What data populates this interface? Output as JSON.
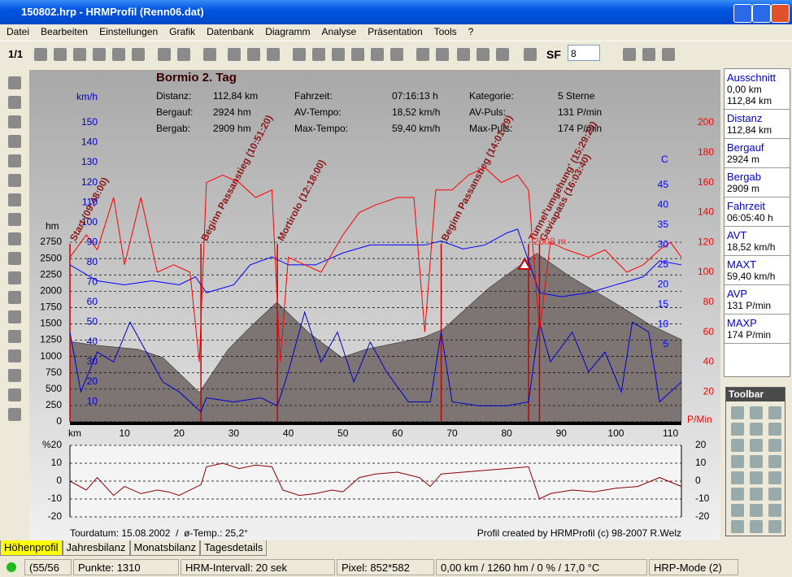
{
  "window": {
    "title": "150802.hrp - HRMProfil (Renn06.dat)"
  },
  "menu": [
    "Datei",
    "Bearbeiten",
    "Einstellungen",
    "Grafik",
    "Datenbank",
    "Diagramm",
    "Analyse",
    "Präsentation",
    "Tools",
    "?"
  ],
  "toolbar": {
    "page": "1/1",
    "sf_label": "SF",
    "sf_value": "8"
  },
  "chart": {
    "title": "Bormio 2. Tag",
    "stats": [
      [
        "Distanz:",
        "112,84 km",
        "Fahrzeit:",
        "07:16:13 h",
        "Kategorie:",
        "5 Sterne"
      ],
      [
        "Bergauf:",
        "2924 hm",
        "AV-Tempo:",
        "18,52 km/h",
        "AV-Puls:",
        "131 P/min"
      ],
      [
        "Bergab:",
        "2909 hm",
        "Max-Tempo:",
        "59,40 km/h",
        "Max-Puls:",
        "174 P/min"
      ]
    ],
    "x_unit": "km",
    "xlim": [
      0,
      112
    ],
    "xticks": [
      10,
      20,
      30,
      40,
      50,
      60,
      70,
      80,
      90,
      100,
      110
    ],
    "elevation": {
      "unit": "hm",
      "color": "#7d7474",
      "ylim": [
        0,
        4580
      ],
      "yticks": [
        0,
        250,
        500,
        750,
        1000,
        1250,
        1500,
        1750,
        2000,
        2250,
        2500,
        2750
      ],
      "x": [
        0,
        5,
        12.5,
        17,
        23.7,
        29,
        33.4,
        37.9,
        43.8,
        49.8,
        54.2,
        64.7,
        68.4,
        76.6,
        85.5,
        91.5,
        100.4,
        106.4,
        112
      ],
      "values": [
        1230,
        1170,
        1110,
        985,
        450,
        1110,
        1480,
        1830,
        1360,
        985,
        1110,
        1290,
        1420,
        2040,
        2580,
        2230,
        1790,
        1480,
        1260
      ]
    },
    "speed": {
      "unit": "km/h",
      "color": "#0000cc",
      "ylim": [
        0,
        150
      ],
      "yticks": [
        10,
        20,
        30,
        40,
        50,
        60,
        70,
        80,
        90,
        100,
        110,
        120,
        130,
        140,
        150
      ],
      "x": [
        0,
        2,
        5,
        8,
        11,
        13,
        15,
        17,
        20,
        24,
        25,
        30,
        35,
        38,
        40,
        43,
        46,
        49,
        52,
        55,
        58,
        62,
        66,
        68,
        70,
        75,
        80,
        84,
        86,
        88,
        92,
        95,
        98,
        101,
        103,
        106,
        108,
        112
      ],
      "values": [
        45,
        15,
        35,
        30,
        50,
        40,
        30,
        20,
        15,
        5,
        12,
        10,
        12,
        8,
        25,
        55,
        30,
        45,
        20,
        40,
        25,
        10,
        10,
        45,
        10,
        8,
        8,
        10,
        50,
        30,
        45,
        25,
        35,
        15,
        50,
        45,
        10,
        20
      ]
    },
    "heart_rate": {
      "unit": "P/Min",
      "color": "#ff0000",
      "ylim": [
        0,
        200
      ],
      "yticks": [
        20,
        40,
        60,
        80,
        100,
        120,
        140,
        160,
        180,
        200
      ],
      "x": [
        0,
        3,
        5,
        8,
        10,
        13,
        16,
        19,
        22,
        23.7,
        25,
        28,
        31,
        34,
        37,
        38.5,
        40,
        43,
        46,
        50,
        53,
        56,
        60,
        63,
        65,
        67,
        70,
        73,
        76,
        79,
        82,
        84,
        86,
        88,
        91,
        95,
        98,
        102,
        105,
        108,
        110,
        112
      ],
      "values": [
        110,
        125,
        115,
        150,
        105,
        150,
        100,
        105,
        100,
        40,
        160,
        165,
        160,
        150,
        155,
        40,
        110,
        105,
        100,
        125,
        140,
        145,
        150,
        150,
        60,
        155,
        155,
        165,
        170,
        160,
        165,
        155,
        60,
        120,
        115,
        110,
        115,
        100,
        105,
        115,
        120,
        110
      ]
    },
    "temperature": {
      "unit": "C",
      "color": "#0000ff",
      "ylim": [
        -14.4,
        60.7
      ],
      "yticks": [
        5,
        10,
        15,
        20,
        25,
        30,
        35,
        40,
        45
      ],
      "x": [
        0,
        5,
        10,
        15,
        20,
        23,
        25,
        30,
        33,
        37,
        40,
        45,
        50,
        55,
        60,
        65,
        68,
        72,
        76,
        80,
        82,
        84,
        86,
        90,
        95,
        100,
        105,
        108,
        112
      ],
      "values": [
        25,
        21,
        20,
        21,
        20,
        22,
        18,
        20,
        25,
        27,
        25,
        25,
        28,
        30,
        30,
        30,
        31,
        29,
        30,
        33,
        34,
        26,
        18,
        17,
        18,
        20,
        22,
        26,
        25
      ]
    },
    "annotations": [
      {
        "km": 0,
        "label": "Start (09:48:00)"
      },
      {
        "km": 24,
        "label": "Beginn Passanstieg (10:51:20)"
      },
      {
        "km": 38,
        "label": "Mortirolo (12:18:00)"
      },
      {
        "km": 68,
        "label": "Beginn Passanstieg (14:01:29)"
      },
      {
        "km": 84,
        "label": "Tunnel'umgehung' (15:29:20)"
      },
      {
        "km": 86,
        "label": "Gaviapass (16:03:40)"
      }
    ],
    "peak": {
      "km": 85.5,
      "label": "2608 m"
    },
    "gradient": {
      "unit": "%",
      "color": "#8b0000",
      "ylim": [
        -20,
        20
      ],
      "yticks": [
        -20,
        -10,
        0,
        10,
        20
      ],
      "x": [
        0,
        3,
        5,
        8,
        10,
        13,
        16,
        18,
        20,
        24,
        25,
        28,
        31,
        34,
        37,
        39,
        42,
        45,
        48,
        50,
        53,
        56,
        60,
        64,
        66,
        68,
        72,
        76,
        80,
        84,
        86,
        88,
        92,
        96,
        100,
        104,
        108,
        112
      ],
      "values": [
        0,
        -5,
        2,
        -8,
        -3,
        -7,
        -5,
        -6,
        -8,
        -2,
        8,
        10,
        7,
        9,
        8,
        -5,
        -8,
        -7,
        -5,
        -6,
        2,
        4,
        5,
        2,
        -3,
        4,
        5,
        6,
        7,
        8,
        -10,
        -7,
        -5,
        -6,
        -4,
        -3,
        2,
        -3
      ]
    },
    "footer_left": "Tourdatum: 15.08.2002  /  ø-Temp.: 25,2°",
    "footer_right": "Profil created by HRMProfil (c) 98-2007 R.Welz"
  },
  "side_panel": [
    {
      "label": "Ausschnitt",
      "values": [
        "0,00 km",
        "112,84 km"
      ]
    },
    {
      "label": "Distanz",
      "values": [
        "112,84 km"
      ]
    },
    {
      "label": "Bergauf",
      "values": [
        "2924 m"
      ]
    },
    {
      "label": "Bergab",
      "values": [
        "2909 m"
      ]
    },
    {
      "label": "Fahrzeit",
      "values": [
        "06:05:40 h"
      ]
    },
    {
      "label": "AVT",
      "values": [
        "18,52 km/h"
      ]
    },
    {
      "label": "MAXT",
      "values": [
        "59,40 km/h"
      ]
    },
    {
      "label": "AVP",
      "values": [
        "131 P/min"
      ]
    },
    {
      "label": "MAXP",
      "values": [
        "174 P/min"
      ]
    }
  ],
  "float_toolbar": {
    "title": "Toolbar"
  },
  "tabs": [
    "Höhenprofil",
    "Jahresbilanz",
    "Monatsbilanz",
    "Tagesdetails"
  ],
  "status": [
    "(55/56",
    "Punkte: 1310",
    "HRM-Intervall: 20 sek",
    "Pixel: 852*582",
    "0,00 km / 1260 hm / 0 % / 17,0 °C",
    "HRP-Mode (2)"
  ]
}
